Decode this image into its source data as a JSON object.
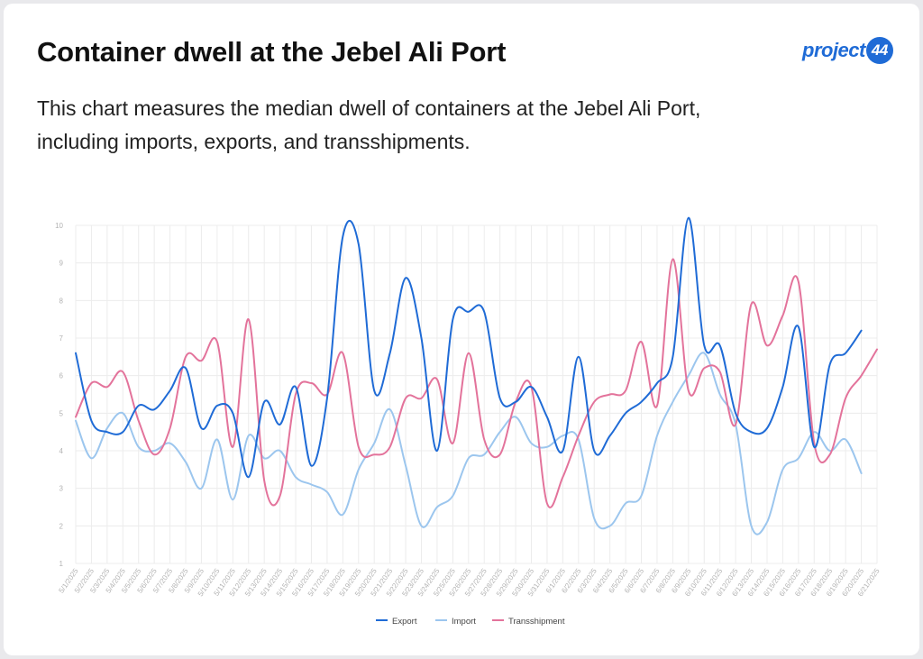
{
  "header": {
    "title": "Container dwell at the Jebel Ali Port",
    "logo_text": "project",
    "logo_badge": "44"
  },
  "description": "This chart measures the median dwell of containers at the Jebel Ali Port, including imports, exports, and transshipments.",
  "colors": {
    "export": "#1f6bd6",
    "import": "#9cc6ee",
    "transshipment": "#e3739b",
    "grid": "#ececec",
    "tick_text": "#b3b3b3",
    "legend_text": "#444444"
  },
  "chart_data": {
    "type": "line",
    "title": "",
    "xlabel": "",
    "ylabel": "",
    "ylim": [
      1,
      10
    ],
    "yticks": [
      1,
      2,
      3,
      4,
      5,
      6,
      7,
      8,
      9,
      10
    ],
    "grid": true,
    "legend_position": "bottom",
    "x": [
      "5/1/2025",
      "5/2/2025",
      "5/3/2025",
      "5/4/2025",
      "5/5/2025",
      "5/6/2025",
      "5/7/2025",
      "5/8/2025",
      "5/9/2025",
      "5/10/2025",
      "5/11/2025",
      "5/12/2025",
      "5/13/2025",
      "5/14/2025",
      "5/15/2025",
      "5/16/2025",
      "5/17/2025",
      "5/18/2025",
      "5/19/2025",
      "5/20/2025",
      "5/21/2025",
      "5/22/2025",
      "5/23/2025",
      "5/24/2025",
      "5/25/2025",
      "5/26/2025",
      "5/27/2025",
      "5/28/2025",
      "5/29/2025",
      "5/30/2025",
      "5/31/2025",
      "6/1/2025",
      "6/2/2025",
      "6/3/2025",
      "6/4/2025",
      "6/5/2025",
      "6/6/2025",
      "6/7/2025",
      "6/8/2025",
      "6/9/2025",
      "6/10/2025",
      "6/11/2025",
      "6/12/2025",
      "6/13/2025",
      "6/14/2025",
      "6/15/2025",
      "6/16/2025",
      "6/17/2025",
      "6/18/2025",
      "6/19/2025",
      "6/20/2025",
      "6/21/2025"
    ],
    "series": [
      {
        "name": "Export",
        "color": "#1f6bd6",
        "values": [
          6.6,
          4.8,
          4.5,
          4.5,
          5.2,
          5.1,
          5.6,
          6.2,
          4.6,
          5.2,
          5.0,
          3.3,
          5.3,
          4.7,
          5.7,
          3.6,
          5.4,
          9.7,
          9.5,
          5.6,
          6.6,
          8.6,
          7.0,
          4.0,
          7.5,
          7.7,
          7.7,
          5.4,
          5.3,
          5.7,
          4.9,
          4.0,
          6.5,
          4.0,
          4.4,
          5.0,
          5.3,
          5.8,
          6.5,
          10.2,
          6.8,
          6.8,
          5.0,
          4.5,
          4.6,
          5.7,
          7.3,
          4.1,
          6.3,
          6.6,
          7.2,
          null
        ]
      },
      {
        "name": "Import",
        "color": "#9cc6ee",
        "values": [
          4.8,
          3.8,
          4.6,
          5.0,
          4.1,
          4.0,
          4.2,
          3.7,
          3.0,
          4.3,
          2.7,
          4.4,
          3.8,
          4.0,
          3.3,
          3.1,
          2.9,
          2.3,
          3.5,
          4.2,
          5.1,
          3.6,
          2.0,
          2.5,
          2.8,
          3.8,
          3.9,
          4.5,
          4.9,
          4.2,
          4.1,
          4.4,
          4.3,
          2.2,
          2.0,
          2.6,
          2.8,
          4.4,
          5.3,
          6.0,
          6.6,
          5.5,
          4.7,
          2.0,
          2.1,
          3.5,
          3.8,
          4.5,
          4.0,
          4.3,
          3.4,
          null
        ]
      },
      {
        "name": "Transshipment",
        "color": "#e3739b",
        "values": [
          4.9,
          5.8,
          5.7,
          6.1,
          4.8,
          3.9,
          4.6,
          6.5,
          6.4,
          6.9,
          4.1,
          7.5,
          3.2,
          2.8,
          5.5,
          5.8,
          5.5,
          6.6,
          4.1,
          3.9,
          4.1,
          5.4,
          5.4,
          5.9,
          4.2,
          6.6,
          4.3,
          3.9,
          5.3,
          5.7,
          2.6,
          3.3,
          4.4,
          5.3,
          5.5,
          5.6,
          6.9,
          5.2,
          9.1,
          5.6,
          6.2,
          6.1,
          4.7,
          7.9,
          6.8,
          7.6,
          8.5,
          4.2,
          3.9,
          5.4,
          6.0,
          6.7
        ]
      }
    ]
  }
}
